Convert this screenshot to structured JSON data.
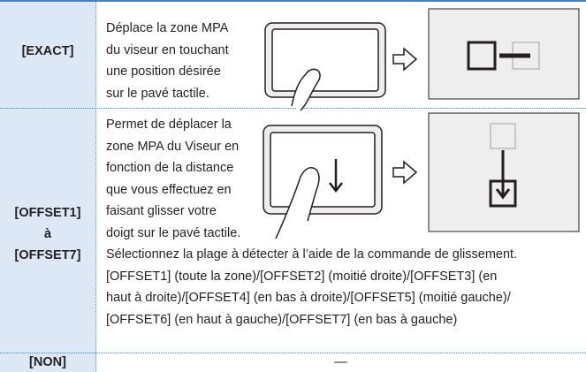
{
  "table": {
    "rows": [
      {
        "label": "[EXACT]",
        "lines": [
          "Déplace la zone MPA",
          "du viseur en touchant",
          "une position désirée",
          "sur le pavé tactile."
        ]
      },
      {
        "label_lines": [
          "[OFFSET1]",
          "à",
          "[OFFSET7]"
        ],
        "lines": [
          "Permet de déplacer la",
          "zone MPA du Viseur en",
          "fonction de la distance",
          "que vous effectuez en",
          "faisant glisser votre",
          "doigt sur le pavé tactile."
        ],
        "full_lines": [
          "Sélectionnez la plage à détecter à l’aide de la commande de glissement.",
          "[OFFSET1] (toute la zone)/[OFFSET2] (moitié droite)/[OFFSET3] (en",
          "haut à droite)/[OFFSET4] (en bas à droite)/[OFFSET5] (moitié gauche)/",
          "[OFFSET6] (en haut à gauche)/[OFFSET7] (en bas à gauche)"
        ]
      },
      {
        "label": "[NON]",
        "text": "—"
      }
    ]
  }
}
